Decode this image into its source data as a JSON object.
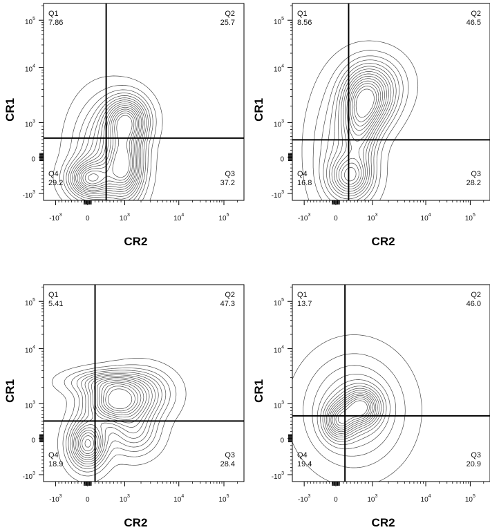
{
  "figure": {
    "description_visible": false
  },
  "chart_data": [
    {
      "type": "contour",
      "panel": "top-left",
      "xlabel": "CR2",
      "ylabel": "CR1",
      "xscale": "biexponential",
      "yscale": "biexponential",
      "x_ticks": [
        {
          "base": "-10",
          "exp": "3",
          "value": -1000
        },
        {
          "base": "0",
          "exp": "",
          "value": 0
        },
        {
          "base": "10",
          "exp": "3",
          "value": 1000
        },
        {
          "base": "10",
          "exp": "4",
          "value": 10000
        },
        {
          "base": "10",
          "exp": "5",
          "value": 100000
        }
      ],
      "y_ticks": [
        {
          "base": "-10",
          "exp": "3",
          "value": -1000
        },
        {
          "base": "0",
          "exp": "",
          "value": 0
        },
        {
          "base": "10",
          "exp": "3",
          "value": 1000
        },
        {
          "base": "10",
          "exp": "4",
          "value": 10000
        },
        {
          "base": "10",
          "exp": "5",
          "value": 100000
        }
      ],
      "gate": {
        "x": 500,
        "y": 550
      },
      "quadrants": [
        {
          "name": "Q1",
          "value": "7.86"
        },
        {
          "name": "Q2",
          "value": "25.7"
        },
        {
          "name": "Q3",
          "value": "37.2"
        },
        {
          "name": "Q4",
          "value": "29.2"
        }
      ],
      "populations": [
        {
          "x": 1100,
          "y": 1100,
          "sx": 0.07,
          "sy": 0.08,
          "w": 1.0
        },
        {
          "x": 1000,
          "y": -250,
          "sx": 0.06,
          "sy": 0.11,
          "w": 1.0
        },
        {
          "x": 50,
          "y": -600,
          "sx": 0.07,
          "sy": 0.06,
          "w": 0.9
        },
        {
          "x": 450,
          "y": 150,
          "sx": 0.1,
          "sy": 0.17,
          "w": 0.5
        }
      ]
    },
    {
      "type": "contour",
      "panel": "top-right",
      "xlabel": "CR2",
      "ylabel": "CR1",
      "xscale": "biexponential",
      "yscale": "biexponential",
      "x_ticks": [
        {
          "base": "-10",
          "exp": "3",
          "value": -1000
        },
        {
          "base": "0",
          "exp": "",
          "value": 0
        },
        {
          "base": "10",
          "exp": "3",
          "value": 1000
        },
        {
          "base": "10",
          "exp": "4",
          "value": 10000
        },
        {
          "base": "10",
          "exp": "5",
          "value": 100000
        }
      ],
      "y_ticks": [
        {
          "base": "-10",
          "exp": "3",
          "value": -1000
        },
        {
          "base": "0",
          "exp": "",
          "value": 0
        },
        {
          "base": "10",
          "exp": "3",
          "value": 1000
        },
        {
          "base": "10",
          "exp": "4",
          "value": 10000
        },
        {
          "base": "10",
          "exp": "5",
          "value": 100000
        }
      ],
      "gate": {
        "x": 350,
        "y": 500
      },
      "quadrants": [
        {
          "name": "Q1",
          "value": "8.56"
        },
        {
          "name": "Q2",
          "value": "46.5"
        },
        {
          "name": "Q3",
          "value": "28.2"
        },
        {
          "name": "Q4",
          "value": "16.8"
        }
      ],
      "populations": [
        {
          "x": 900,
          "y": 2500,
          "sx": 0.08,
          "sy": 0.1,
          "w": 1.0
        },
        {
          "x": 650,
          "y": 900,
          "sx": 0.06,
          "sy": 0.14,
          "w": 0.7
        },
        {
          "x": 400,
          "y": -550,
          "sx": 0.07,
          "sy": 0.07,
          "w": 0.9
        },
        {
          "x": 1200,
          "y": 5000,
          "sx": 0.1,
          "sy": 0.1,
          "w": 0.5
        },
        {
          "x": 150,
          "y": 200,
          "sx": 0.1,
          "sy": 0.22,
          "w": 0.45
        }
      ]
    },
    {
      "type": "contour",
      "panel": "bottom-left",
      "xlabel": "CR2",
      "ylabel": "CR1",
      "xscale": "biexponential",
      "yscale": "biexponential",
      "x_ticks": [
        {
          "base": "-10",
          "exp": "3",
          "value": -1000
        },
        {
          "base": "0",
          "exp": "",
          "value": 0
        },
        {
          "base": "10",
          "exp": "3",
          "value": 1000
        },
        {
          "base": "10",
          "exp": "4",
          "value": 10000
        },
        {
          "base": "10",
          "exp": "5",
          "value": 100000
        }
      ],
      "y_ticks": [
        {
          "base": "-10",
          "exp": "3",
          "value": -1000
        },
        {
          "base": "0",
          "exp": "",
          "value": 0
        },
        {
          "base": "10",
          "exp": "3",
          "value": 1000
        },
        {
          "base": "10",
          "exp": "4",
          "value": 10000
        },
        {
          "base": "10",
          "exp": "5",
          "value": 100000
        }
      ],
      "gate": {
        "x": 200,
        "y": 500
      },
      "quadrants": [
        {
          "name": "Q1",
          "value": "5.41"
        },
        {
          "name": "Q2",
          "value": "47.3"
        },
        {
          "name": "Q3",
          "value": "28.4"
        },
        {
          "name": "Q4",
          "value": "18.9"
        }
      ],
      "populations": [
        {
          "x": 700,
          "y": 1100,
          "sx": 0.09,
          "sy": 0.07,
          "w": 1.0
        },
        {
          "x": 0,
          "y": -150,
          "sx": 0.06,
          "sy": 0.08,
          "w": 1.0
        },
        {
          "x": 2000,
          "y": 1500,
          "sx": 0.1,
          "sy": 0.08,
          "w": 0.55
        },
        {
          "x": 1500,
          "y": 200,
          "sx": 0.08,
          "sy": 0.08,
          "w": 0.45
        },
        {
          "x": 400,
          "y": 2500,
          "sx": 0.12,
          "sy": 0.04,
          "w": 0.4
        }
      ]
    },
    {
      "type": "contour",
      "panel": "bottom-right",
      "xlabel": "CR2",
      "ylabel": "CR1",
      "xscale": "biexponential",
      "yscale": "biexponential",
      "x_ticks": [
        {
          "base": "-10",
          "exp": "3",
          "value": -1000
        },
        {
          "base": "0",
          "exp": "",
          "value": 0
        },
        {
          "base": "10",
          "exp": "3",
          "value": 1000
        },
        {
          "base": "10",
          "exp": "4",
          "value": 10000
        },
        {
          "base": "10",
          "exp": "5",
          "value": 100000
        }
      ],
      "y_ticks": [
        {
          "base": "-10",
          "exp": "3",
          "value": -1000
        },
        {
          "base": "0",
          "exp": "",
          "value": 0
        },
        {
          "base": "10",
          "exp": "3",
          "value": 1000
        },
        {
          "base": "10",
          "exp": "4",
          "value": 10000
        },
        {
          "base": "10",
          "exp": "5",
          "value": 100000
        }
      ],
      "gate": {
        "x": 250,
        "y": 650
      },
      "quadrants": [
        {
          "name": "Q1",
          "value": "13.7"
        },
        {
          "name": "Q2",
          "value": "46.0"
        },
        {
          "name": "Q3",
          "value": "20.9"
        },
        {
          "name": "Q4",
          "value": "19.4"
        }
      ],
      "populations": [
        {
          "x": 700,
          "y": 900,
          "sx": 0.06,
          "sy": 0.06,
          "w": 1.0
        },
        {
          "x": 100,
          "y": 500,
          "sx": 0.05,
          "sy": 0.06,
          "w": 0.85
        },
        {
          "x": 500,
          "y": 800,
          "sx": 0.16,
          "sy": 0.18,
          "w": 0.55
        }
      ]
    }
  ]
}
